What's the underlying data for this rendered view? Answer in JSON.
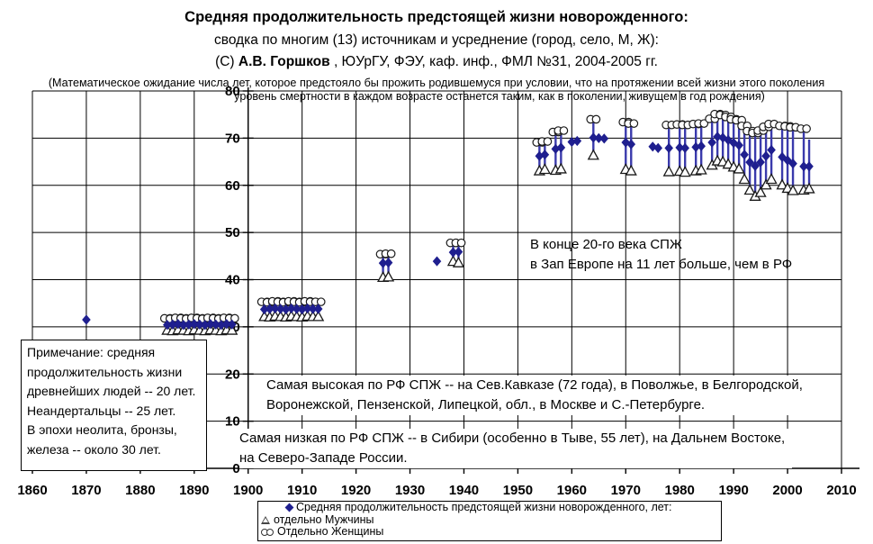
{
  "header": {
    "title": "Средняя продолжительность предстоящей жизни новорожденного:",
    "subtitle": "сводка по многим (13) источникам и усреднение (город, село, М, Ж):",
    "credit_prefix": "(С) ",
    "credit_author": "А.В. Горшков",
    "credit_rest": " , ЮУрГУ, ФЭУ, каф. инф., ФМЛ №31, 2004-2005 гг.",
    "definition_line1": "(Математическое ожидание числа лет, которое предстояло бы прожить родившемуся при условии, что на протяжении всей жизни этого поколения",
    "definition_line2": "уровень смертности в каждом возрасте останется таким, как в поколении, живущем в год рождения)"
  },
  "annotations": {
    "west_europe": {
      "line1": "В конце 20-го века СПЖ",
      "line2": "в Зап Европе на 11 лет больше, чем в РФ"
    },
    "highest": {
      "line1": "Самая высокая по РФ СПЖ -- на Сев.Кавказе (72 года), в Поволжье, в Белгородской,",
      "line2": "Воронежской, Пензенской, Липецкой,  обл., в Москве и С.-Петербурге."
    },
    "lowest": {
      "line1": "Самая низкая по РФ СПЖ -- в Сибири (особенно в Тыве, 55 лет), на Дальнем Востоке,",
      "line2": "на Северо-Западе России."
    },
    "note": {
      "lines": [
        "Примечание: средняя",
        "продолжительность жизни",
        "древнейших людей -- 20 лет.",
        "Неандертальцы -- 25 лет.",
        "В эпохи неолита, бронзы,",
        "железа -- около 30 лет."
      ]
    }
  },
  "legend": {
    "items": [
      {
        "marker": "diamond",
        "label": "Средняя продолжительность предстоящей жизни новорожденного, лет:"
      },
      {
        "marker": "triangle",
        "label": "отдельно Мужчины"
      },
      {
        "marker": "circles",
        "label": "Отдельно Женщины"
      }
    ]
  },
  "colors": {
    "avg_marker": "#1F1F8F",
    "error_bar": "#3A3AAC",
    "outline_markers": "#1a1a1a",
    "grid": "#000000"
  },
  "chart_data": {
    "type": "scatter",
    "title": "Средняя продолжительность предстоящей жизни новорожденного, лет",
    "xlabel": "",
    "ylabel": "",
    "grid": true,
    "xlim": [
      1860,
      2010
    ],
    "ylim": [
      0,
      80
    ],
    "x_ticks": [
      1860,
      1870,
      1880,
      1890,
      1900,
      1910,
      1920,
      1930,
      1940,
      1950,
      1960,
      1970,
      1980,
      1990,
      2000,
      2010
    ],
    "y_ticks": [
      0,
      10,
      20,
      30,
      40,
      50,
      60,
      70,
      80
    ],
    "axis_cross_year": 1900,
    "series": [
      {
        "name": "Средняя продолжительность предстоящей жизни новорожденного, лет",
        "marker": "diamond",
        "points": [
          [
            1870,
            31.5
          ],
          [
            1885,
            30.4
          ],
          [
            1886,
            30.5
          ],
          [
            1887,
            30.6
          ],
          [
            1888,
            30.4
          ],
          [
            1889,
            30.5
          ],
          [
            1890,
            30.6
          ],
          [
            1891,
            30.5
          ],
          [
            1892,
            30.4
          ],
          [
            1893,
            30.6
          ],
          [
            1894,
            30.5
          ],
          [
            1895,
            30.4
          ],
          [
            1896,
            30.6
          ],
          [
            1897,
            30.5
          ],
          [
            1903,
            33.7
          ],
          [
            1904,
            33.8
          ],
          [
            1905,
            33.9
          ],
          [
            1906,
            33.8
          ],
          [
            1907,
            33.7
          ],
          [
            1908,
            33.9
          ],
          [
            1909,
            33.8
          ],
          [
            1910,
            33.7
          ],
          [
            1911,
            33.9
          ],
          [
            1912,
            33.8
          ],
          [
            1913,
            33.8
          ],
          [
            1925,
            43.5
          ],
          [
            1926,
            43.6
          ],
          [
            1935,
            43.9
          ],
          [
            1938,
            45.8
          ],
          [
            1939,
            45.9
          ],
          [
            1954,
            66.2
          ],
          [
            1955,
            66.5
          ],
          [
            1957,
            67.7
          ],
          [
            1958,
            68.0
          ],
          [
            1960,
            69.2
          ],
          [
            1961,
            69.4
          ],
          [
            1964,
            70.1
          ],
          [
            1965,
            70.0
          ],
          [
            1966,
            69.9
          ],
          [
            1970,
            69.1
          ],
          [
            1971,
            68.7
          ],
          [
            1975,
            68.2
          ],
          [
            1976,
            67.9
          ],
          [
            1978,
            67.9
          ],
          [
            1980,
            68.0
          ],
          [
            1981,
            67.9
          ],
          [
            1983,
            68.1
          ],
          [
            1984,
            68.3
          ],
          [
            1986,
            69.1
          ],
          [
            1987,
            70.3
          ],
          [
            1988,
            70.1
          ],
          [
            1989,
            69.6
          ],
          [
            1990,
            69.0
          ],
          [
            1991,
            68.5
          ],
          [
            1992,
            66.5
          ],
          [
            1993,
            64.9
          ],
          [
            1994,
            64.1
          ],
          [
            1995,
            64.9
          ],
          [
            1996,
            66.2
          ],
          [
            1997,
            67.5
          ],
          [
            1999,
            66.0
          ],
          [
            2000,
            65.3
          ],
          [
            2001,
            64.6
          ],
          [
            2003,
            64.0
          ],
          [
            2004,
            64.0
          ]
        ]
      },
      {
        "name": "отдельно Мужчины",
        "marker": "triangle",
        "points": [
          [
            1885,
            29.2
          ],
          [
            1886,
            29.1
          ],
          [
            1887,
            29.3
          ],
          [
            1888,
            29.2
          ],
          [
            1889,
            29.1
          ],
          [
            1890,
            29.3
          ],
          [
            1891,
            29.2
          ],
          [
            1892,
            29.1
          ],
          [
            1893,
            29.3
          ],
          [
            1894,
            29.2
          ],
          [
            1895,
            29.1
          ],
          [
            1896,
            29.3
          ],
          [
            1897,
            29.2
          ],
          [
            1903,
            32.1
          ],
          [
            1904,
            32.0
          ],
          [
            1905,
            32.2
          ],
          [
            1906,
            32.1
          ],
          [
            1907,
            32.0
          ],
          [
            1908,
            32.2
          ],
          [
            1909,
            32.1
          ],
          [
            1910,
            32.0
          ],
          [
            1911,
            32.2
          ],
          [
            1912,
            32.1
          ],
          [
            1913,
            32.1
          ],
          [
            1925,
            40.4
          ],
          [
            1926,
            40.5
          ],
          [
            1938,
            43.8
          ],
          [
            1939,
            43.5
          ],
          [
            1954,
            63.0
          ],
          [
            1955,
            63.3
          ],
          [
            1957,
            63.1
          ],
          [
            1958,
            63.4
          ],
          [
            1964,
            66.3
          ],
          [
            1970,
            63.3
          ],
          [
            1971,
            63.0
          ],
          [
            1978,
            62.8
          ],
          [
            1980,
            62.9
          ],
          [
            1981,
            62.7
          ],
          [
            1983,
            63.0
          ],
          [
            1984,
            63.2
          ],
          [
            1986,
            64.2
          ],
          [
            1987,
            65.1
          ],
          [
            1988,
            64.9
          ],
          [
            1989,
            64.4
          ],
          [
            1990,
            63.8
          ],
          [
            1991,
            63.4
          ],
          [
            1992,
            61.2
          ],
          [
            1993,
            58.9
          ],
          [
            1994,
            57.6
          ],
          [
            1995,
            58.4
          ],
          [
            1996,
            60.0
          ],
          [
            1997,
            61.2
          ],
          [
            1999,
            60.0
          ],
          [
            2000,
            59.3
          ],
          [
            2001,
            58.8
          ],
          [
            2003,
            58.9
          ],
          [
            2004,
            59.2
          ]
        ]
      },
      {
        "name": "Отдельно Женщины",
        "marker": "circles",
        "points": [
          [
            1885,
            31.8
          ],
          [
            1886,
            31.7
          ],
          [
            1887,
            31.9
          ],
          [
            1888,
            31.8
          ],
          [
            1889,
            31.7
          ],
          [
            1890,
            31.9
          ],
          [
            1891,
            31.8
          ],
          [
            1892,
            31.7
          ],
          [
            1893,
            31.9
          ],
          [
            1894,
            31.8
          ],
          [
            1895,
            31.7
          ],
          [
            1896,
            31.9
          ],
          [
            1897,
            31.8
          ],
          [
            1903,
            35.3
          ],
          [
            1904,
            35.2
          ],
          [
            1905,
            35.4
          ],
          [
            1906,
            35.3
          ],
          [
            1907,
            35.2
          ],
          [
            1908,
            35.4
          ],
          [
            1909,
            35.3
          ],
          [
            1910,
            35.2
          ],
          [
            1911,
            35.4
          ],
          [
            1912,
            35.3
          ],
          [
            1913,
            35.3
          ],
          [
            1925,
            45.4
          ],
          [
            1926,
            45.5
          ],
          [
            1938,
            47.8
          ],
          [
            1939,
            47.8
          ],
          [
            1954,
            69.1
          ],
          [
            1955,
            69.3
          ],
          [
            1957,
            71.3
          ],
          [
            1958,
            71.6
          ],
          [
            1964,
            74.0
          ],
          [
            1970,
            73.4
          ],
          [
            1971,
            73.1
          ],
          [
            1978,
            72.8
          ],
          [
            1980,
            72.9
          ],
          [
            1981,
            72.8
          ],
          [
            1983,
            73.0
          ],
          [
            1984,
            73.1
          ],
          [
            1986,
            74.1
          ],
          [
            1987,
            75.1
          ],
          [
            1988,
            74.9
          ],
          [
            1989,
            74.5
          ],
          [
            1990,
            74.0
          ],
          [
            1991,
            73.8
          ],
          [
            1992,
            72.6
          ],
          [
            1993,
            71.5
          ],
          [
            1994,
            71.1
          ],
          [
            1995,
            71.6
          ],
          [
            1996,
            72.4
          ],
          [
            1997,
            73.0
          ],
          [
            1999,
            72.6
          ],
          [
            2000,
            72.5
          ],
          [
            2001,
            72.3
          ],
          [
            2003,
            72.0
          ]
        ]
      }
    ],
    "extra_bars": [
      {
        "year": 2004,
        "lo": 58.8,
        "hi": 69.7
      }
    ]
  }
}
